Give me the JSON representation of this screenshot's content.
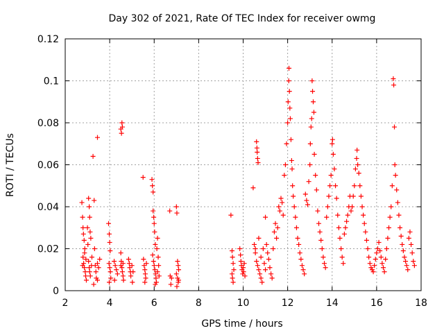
{
  "chart_data": {
    "type": "scatter",
    "title": "Day 302 of 2021, Rate Of TEC Index for receiver owmg",
    "xlabel": "GPS time / hours",
    "ylabel": "ROTI / TECUs",
    "xlim": [
      2,
      18
    ],
    "ylim": [
      0,
      0.12
    ],
    "xticks": [
      "2",
      "4",
      "6",
      "8",
      "10",
      "12",
      "14",
      "16",
      "18"
    ],
    "yticks": [
      "0",
      "0.02",
      "0.04",
      "0.06",
      "0.08",
      "0.1",
      "0.12"
    ],
    "grid": true,
    "marker": "+",
    "color": "#ff0000",
    "series": [
      {
        "points": [
          [
            2.75,
            0.042
          ],
          [
            2.78,
            0.035
          ],
          [
            2.8,
            0.03
          ],
          [
            2.82,
            0.027
          ],
          [
            2.85,
            0.024
          ],
          [
            2.88,
            0.02
          ],
          [
            2.8,
            0.016
          ],
          [
            2.83,
            0.013
          ],
          [
            2.86,
            0.011
          ],
          [
            2.9,
            0.009
          ],
          [
            2.92,
            0.007
          ],
          [
            2.95,
            0.005
          ],
          [
            2.78,
            0.012
          ],
          [
            2.87,
            0.018
          ],
          [
            2.93,
            0.015
          ],
          [
            3.0,
            0.03
          ],
          [
            3.02,
            0.022
          ],
          [
            3.05,
            0.044
          ],
          [
            3.08,
            0.04
          ],
          [
            3.1,
            0.035
          ],
          [
            3.12,
            0.028
          ],
          [
            3.15,
            0.025
          ],
          [
            3.05,
            0.014
          ],
          [
            3.08,
            0.011
          ],
          [
            3.1,
            0.009
          ],
          [
            3.13,
            0.007
          ],
          [
            3.18,
            0.012
          ],
          [
            3.2,
            0.016
          ],
          [
            3.25,
            0.064
          ],
          [
            3.3,
            0.043
          ],
          [
            3.32,
            0.02
          ],
          [
            3.35,
            0.012
          ],
          [
            3.38,
            0.009
          ],
          [
            3.4,
            0.006
          ],
          [
            3.45,
            0.073
          ],
          [
            3.45,
            0.013
          ],
          [
            3.5,
            0.011
          ],
          [
            3.55,
            0.015
          ],
          [
            3.45,
            0.005
          ],
          [
            3.28,
            0.003
          ],
          [
            3.95,
            0.032
          ],
          [
            3.98,
            0.027
          ],
          [
            4.0,
            0.023
          ],
          [
            4.02,
            0.019
          ],
          [
            3.97,
            0.013
          ],
          [
            4.0,
            0.011
          ],
          [
            4.03,
            0.009
          ],
          [
            4.05,
            0.006
          ],
          [
            3.98,
            0.004
          ],
          [
            4.2,
            0.014
          ],
          [
            4.25,
            0.012
          ],
          [
            4.3,
            0.01
          ],
          [
            4.35,
            0.008
          ],
          [
            4.22,
            0.005
          ],
          [
            4.5,
            0.077
          ],
          [
            4.53,
            0.075
          ],
          [
            4.55,
            0.08
          ],
          [
            4.57,
            0.078
          ],
          [
            4.5,
            0.018
          ],
          [
            4.52,
            0.014
          ],
          [
            4.55,
            0.011
          ],
          [
            4.57,
            0.009
          ],
          [
            4.6,
            0.007
          ],
          [
            4.62,
            0.005
          ],
          [
            4.5,
            0.012
          ],
          [
            4.6,
            0.013
          ],
          [
            4.85,
            0.015
          ],
          [
            4.88,
            0.013
          ],
          [
            4.9,
            0.011
          ],
          [
            4.93,
            0.009
          ],
          [
            4.95,
            0.007
          ],
          [
            5.0,
            0.012
          ],
          [
            5.05,
            0.009
          ],
          [
            5.02,
            0.004
          ],
          [
            5.5,
            0.054
          ],
          [
            5.52,
            0.015
          ],
          [
            5.55,
            0.012
          ],
          [
            5.58,
            0.01
          ],
          [
            5.6,
            0.008
          ],
          [
            5.62,
            0.006
          ],
          [
            5.58,
            0.004
          ],
          [
            5.65,
            0.013
          ],
          [
            5.9,
            0.053
          ],
          [
            5.92,
            0.05
          ],
          [
            5.95,
            0.047
          ],
          [
            5.95,
            0.038
          ],
          [
            5.98,
            0.035
          ],
          [
            6.0,
            0.032
          ],
          [
            6.02,
            0.028
          ],
          [
            6.05,
            0.022
          ],
          [
            5.93,
            0.017
          ],
          [
            5.97,
            0.014
          ],
          [
            6.0,
            0.012
          ],
          [
            6.03,
            0.01
          ],
          [
            6.06,
            0.008
          ],
          [
            6.08,
            0.006
          ],
          [
            6.1,
            0.004
          ],
          [
            6.12,
            0.02
          ],
          [
            6.15,
            0.025
          ],
          [
            6.18,
            0.016
          ],
          [
            6.2,
            0.012
          ],
          [
            6.15,
            0.009
          ],
          [
            6.22,
            0.007
          ],
          [
            6.05,
            0.003
          ],
          [
            6.7,
            0.038
          ],
          [
            6.72,
            0.007
          ],
          [
            6.75,
            0.003
          ],
          [
            6.78,
            0.006
          ],
          [
            7.0,
            0.04
          ],
          [
            7.02,
            0.037
          ],
          [
            7.05,
            0.014
          ],
          [
            7.08,
            0.012
          ],
          [
            7.1,
            0.01
          ],
          [
            7.0,
            0.008
          ],
          [
            7.05,
            0.006
          ],
          [
            7.08,
            0.004
          ],
          [
            7.02,
            0.002
          ],
          [
            7.1,
            0.005
          ],
          [
            9.45,
            0.036
          ],
          [
            9.5,
            0.019
          ],
          [
            9.52,
            0.016
          ],
          [
            9.55,
            0.013
          ],
          [
            9.58,
            0.01
          ],
          [
            9.5,
            0.008
          ],
          [
            9.52,
            0.006
          ],
          [
            9.55,
            0.004
          ],
          [
            9.85,
            0.02
          ],
          [
            9.88,
            0.017
          ],
          [
            9.9,
            0.014
          ],
          [
            9.92,
            0.012
          ],
          [
            9.95,
            0.01
          ],
          [
            9.98,
            0.008
          ],
          [
            10.0,
            0.011
          ],
          [
            10.02,
            0.009
          ],
          [
            10.05,
            0.013
          ],
          [
            10.08,
            0.007
          ],
          [
            10.45,
            0.049
          ],
          [
            10.6,
            0.071
          ],
          [
            10.62,
            0.068
          ],
          [
            10.63,
            0.066
          ],
          [
            10.65,
            0.063
          ],
          [
            10.67,
            0.061
          ],
          [
            10.5,
            0.022
          ],
          [
            10.55,
            0.018
          ],
          [
            10.6,
            0.014
          ],
          [
            10.65,
            0.012
          ],
          [
            10.7,
            0.01
          ],
          [
            10.75,
            0.008
          ],
          [
            10.8,
            0.006
          ],
          [
            10.85,
            0.004
          ],
          [
            10.55,
            0.02
          ],
          [
            10.7,
            0.025
          ],
          [
            10.8,
            0.016
          ],
          [
            10.9,
            0.02
          ],
          [
            10.95,
            0.013
          ],
          [
            11.0,
            0.01
          ],
          [
            11.0,
            0.035
          ],
          [
            11.05,
            0.022
          ],
          [
            11.1,
            0.018
          ],
          [
            11.15,
            0.015
          ],
          [
            11.2,
            0.011
          ],
          [
            11.25,
            0.008
          ],
          [
            11.3,
            0.006
          ],
          [
            11.35,
            0.02
          ],
          [
            11.4,
            0.028
          ],
          [
            11.45,
            0.032
          ],
          [
            11.5,
            0.025
          ],
          [
            11.55,
            0.03
          ],
          [
            11.6,
            0.04
          ],
          [
            11.65,
            0.038
          ],
          [
            11.7,
            0.044
          ],
          [
            11.75,
            0.042
          ],
          [
            11.8,
            0.036
          ],
          [
            11.85,
            0.055
          ],
          [
            11.9,
            0.06
          ],
          [
            11.95,
            0.07
          ],
          [
            12.0,
            0.08
          ],
          [
            12.02,
            0.09
          ],
          [
            12.05,
            0.1
          ],
          [
            12.06,
            0.106
          ],
          [
            12.08,
            0.095
          ],
          [
            12.1,
            0.087
          ],
          [
            12.12,
            0.082
          ],
          [
            12.15,
            0.072
          ],
          [
            12.18,
            0.062
          ],
          [
            12.2,
            0.058
          ],
          [
            12.22,
            0.05
          ],
          [
            12.25,
            0.045
          ],
          [
            12.3,
            0.04
          ],
          [
            12.35,
            0.035
          ],
          [
            12.4,
            0.03
          ],
          [
            12.45,
            0.025
          ],
          [
            12.5,
            0.022
          ],
          [
            12.55,
            0.018
          ],
          [
            12.6,
            0.015
          ],
          [
            12.65,
            0.012
          ],
          [
            12.7,
            0.01
          ],
          [
            12.75,
            0.008
          ],
          [
            12.8,
            0.046
          ],
          [
            12.85,
            0.043
          ],
          [
            12.9,
            0.041
          ],
          [
            12.95,
            0.052
          ],
          [
            13.0,
            0.06
          ],
          [
            13.02,
            0.07
          ],
          [
            13.05,
            0.078
          ],
          [
            13.08,
            0.082
          ],
          [
            13.1,
            0.1
          ],
          [
            13.12,
            0.095
          ],
          [
            13.15,
            0.09
          ],
          [
            13.18,
            0.085
          ],
          [
            13.2,
            0.065
          ],
          [
            13.25,
            0.055
          ],
          [
            13.3,
            0.048
          ],
          [
            13.35,
            0.038
          ],
          [
            13.4,
            0.032
          ],
          [
            13.45,
            0.028
          ],
          [
            13.5,
            0.024
          ],
          [
            13.55,
            0.02
          ],
          [
            13.6,
            0.016
          ],
          [
            13.65,
            0.013
          ],
          [
            13.7,
            0.011
          ],
          [
            13.75,
            0.035
          ],
          [
            13.8,
            0.04
          ],
          [
            13.85,
            0.045
          ],
          [
            13.9,
            0.05
          ],
          [
            13.95,
            0.055
          ],
          [
            14.0,
            0.07
          ],
          [
            14.02,
            0.072
          ],
          [
            14.05,
            0.065
          ],
          [
            14.1,
            0.058
          ],
          [
            14.15,
            0.05
          ],
          [
            14.2,
            0.044
          ],
          [
            14.25,
            0.036
          ],
          [
            14.3,
            0.03
          ],
          [
            14.35,
            0.025
          ],
          [
            14.4,
            0.02
          ],
          [
            14.45,
            0.016
          ],
          [
            14.5,
            0.013
          ],
          [
            14.55,
            0.027
          ],
          [
            14.6,
            0.03
          ],
          [
            14.65,
            0.033
          ],
          [
            14.7,
            0.036
          ],
          [
            14.75,
            0.04
          ],
          [
            14.8,
            0.045
          ],
          [
            14.85,
            0.038
          ],
          [
            14.9,
            0.04
          ],
          [
            14.95,
            0.045
          ],
          [
            15.0,
            0.05
          ],
          [
            15.05,
            0.058
          ],
          [
            15.1,
            0.063
          ],
          [
            15.12,
            0.067
          ],
          [
            15.15,
            0.06
          ],
          [
            15.2,
            0.056
          ],
          [
            15.25,
            0.05
          ],
          [
            15.3,
            0.045
          ],
          [
            15.35,
            0.04
          ],
          [
            15.4,
            0.036
          ],
          [
            15.45,
            0.032
          ],
          [
            15.5,
            0.028
          ],
          [
            15.55,
            0.024
          ],
          [
            15.6,
            0.02
          ],
          [
            15.65,
            0.016
          ],
          [
            15.7,
            0.013
          ],
          [
            15.75,
            0.011
          ],
          [
            15.8,
            0.01
          ],
          [
            15.85,
            0.009
          ],
          [
            15.9,
            0.012
          ],
          [
            15.95,
            0.015
          ],
          [
            16.0,
            0.018
          ],
          [
            16.05,
            0.02
          ],
          [
            16.1,
            0.023
          ],
          [
            16.15,
            0.019
          ],
          [
            16.2,
            0.016
          ],
          [
            16.25,
            0.013
          ],
          [
            16.3,
            0.011
          ],
          [
            16.35,
            0.009
          ],
          [
            16.4,
            0.015
          ],
          [
            16.45,
            0.02
          ],
          [
            16.5,
            0.025
          ],
          [
            16.55,
            0.03
          ],
          [
            16.6,
            0.035
          ],
          [
            16.65,
            0.04
          ],
          [
            16.7,
            0.05
          ],
          [
            16.75,
            0.101
          ],
          [
            16.77,
            0.098
          ],
          [
            16.8,
            0.078
          ],
          [
            16.82,
            0.06
          ],
          [
            16.85,
            0.055
          ],
          [
            16.9,
            0.048
          ],
          [
            16.95,
            0.042
          ],
          [
            17.0,
            0.036
          ],
          [
            17.05,
            0.03
          ],
          [
            17.1,
            0.026
          ],
          [
            17.15,
            0.022
          ],
          [
            17.2,
            0.019
          ],
          [
            17.25,
            0.016
          ],
          [
            17.3,
            0.014
          ],
          [
            17.35,
            0.012
          ],
          [
            17.4,
            0.01
          ],
          [
            17.45,
            0.025
          ],
          [
            17.5,
            0.028
          ],
          [
            17.55,
            0.022
          ],
          [
            17.6,
            0.018
          ],
          [
            17.65,
            0.014
          ],
          [
            17.7,
            0.012
          ]
        ]
      }
    ]
  }
}
